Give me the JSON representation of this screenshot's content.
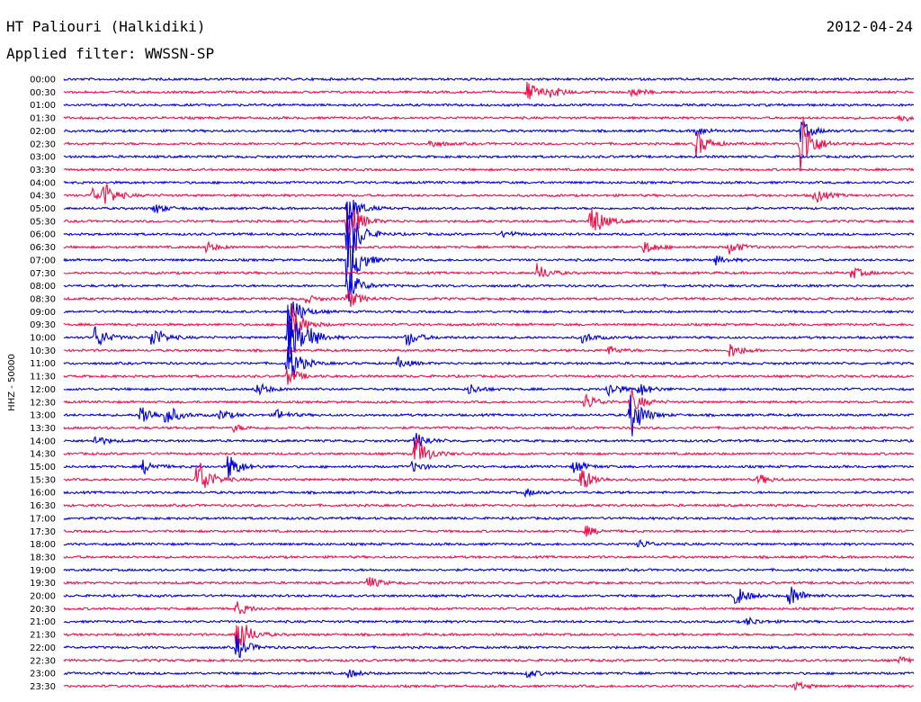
{
  "header": {
    "station": "HT Paliouri (Halkidiki)",
    "date": "2012-04-24",
    "filter": "Applied filter: WWSSN-SP"
  },
  "chart_data": {
    "type": "line",
    "ylabel": "HHZ - 50000",
    "colors": [
      "#0000e0",
      "#f0104a"
    ],
    "x_range_minutes": [
      0,
      30
    ],
    "rows": [
      {
        "label": "00:00",
        "events": []
      },
      {
        "label": "00:30",
        "events": [
          {
            "t": 16.3,
            "a": 14
          },
          {
            "t": 17.2,
            "a": 6
          },
          {
            "t": 20.0,
            "a": 6
          }
        ]
      },
      {
        "label": "01:00",
        "events": []
      },
      {
        "label": "01:30",
        "events": [
          {
            "t": 29.5,
            "a": 5
          }
        ]
      },
      {
        "label": "02:00",
        "events": [
          {
            "t": 22.3,
            "a": 6
          },
          {
            "t": 26.0,
            "a": 12
          }
        ]
      },
      {
        "label": "02:30",
        "events": [
          {
            "t": 12.9,
            "a": 5
          },
          {
            "t": 22.3,
            "a": 16
          },
          {
            "t": 26.0,
            "a": 40
          }
        ]
      },
      {
        "label": "03:00",
        "events": []
      },
      {
        "label": "03:30",
        "events": []
      },
      {
        "label": "04:00",
        "events": []
      },
      {
        "label": "04:30",
        "events": [
          {
            "t": 1.0,
            "a": 8
          },
          {
            "t": 1.4,
            "a": 14
          },
          {
            "t": 26.5,
            "a": 9
          }
        ]
      },
      {
        "label": "05:00",
        "events": [
          {
            "t": 3.2,
            "a": 6
          },
          {
            "t": 10.0,
            "a": 20
          }
        ]
      },
      {
        "label": "05:30",
        "events": [
          {
            "t": 10.0,
            "a": 30
          },
          {
            "t": 18.6,
            "a": 22
          }
        ]
      },
      {
        "label": "06:00",
        "events": [
          {
            "t": 10.0,
            "a": 45
          },
          {
            "t": 15.5,
            "a": 4
          }
        ]
      },
      {
        "label": "06:30",
        "events": [
          {
            "t": 5.0,
            "a": 6
          },
          {
            "t": 20.5,
            "a": 8
          },
          {
            "t": 23.5,
            "a": 8
          }
        ]
      },
      {
        "label": "07:00",
        "events": [
          {
            "t": 10.0,
            "a": 40
          },
          {
            "t": 23.0,
            "a": 5
          }
        ]
      },
      {
        "label": "07:30",
        "events": [
          {
            "t": 16.7,
            "a": 10
          },
          {
            "t": 27.8,
            "a": 7
          }
        ]
      },
      {
        "label": "08:00",
        "events": [
          {
            "t": 10.0,
            "a": 20
          }
        ]
      },
      {
        "label": "08:30",
        "events": [
          {
            "t": 8.5,
            "a": 5
          },
          {
            "t": 10.0,
            "a": 12
          }
        ]
      },
      {
        "label": "09:00",
        "events": [
          {
            "t": 8.0,
            "a": 20
          }
        ]
      },
      {
        "label": "09:30",
        "events": [
          {
            "t": 8.0,
            "a": 26
          }
        ]
      },
      {
        "label": "10:00",
        "events": [
          {
            "t": 1.1,
            "a": 14
          },
          {
            "t": 3.1,
            "a": 14
          },
          {
            "t": 7.9,
            "a": 40
          },
          {
            "t": 8.6,
            "a": 10
          },
          {
            "t": 12.1,
            "a": 10
          },
          {
            "t": 18.3,
            "a": 6
          }
        ]
      },
      {
        "label": "10:30",
        "events": [
          {
            "t": 19.2,
            "a": 5
          },
          {
            "t": 23.5,
            "a": 9
          }
        ]
      },
      {
        "label": "11:00",
        "events": [
          {
            "t": 7.9,
            "a": 26
          },
          {
            "t": 11.8,
            "a": 6
          }
        ]
      },
      {
        "label": "11:30",
        "events": [
          {
            "t": 7.9,
            "a": 10
          }
        ]
      },
      {
        "label": "12:00",
        "events": [
          {
            "t": 6.8,
            "a": 8
          },
          {
            "t": 14.3,
            "a": 6
          },
          {
            "t": 19.2,
            "a": 9
          },
          {
            "t": 20.3,
            "a": 8
          }
        ]
      },
      {
        "label": "12:30",
        "events": [
          {
            "t": 18.4,
            "a": 10
          },
          {
            "t": 20.0,
            "a": 14
          }
        ]
      },
      {
        "label": "13:00",
        "events": [
          {
            "t": 2.7,
            "a": 14
          },
          {
            "t": 3.6,
            "a": 12
          },
          {
            "t": 5.5,
            "a": 6
          },
          {
            "t": 7.5,
            "a": 6
          },
          {
            "t": 20.0,
            "a": 28
          }
        ]
      },
      {
        "label": "13:30",
        "events": [
          {
            "t": 6.0,
            "a": 4
          }
        ]
      },
      {
        "label": "14:00",
        "events": [
          {
            "t": 1.1,
            "a": 6
          },
          {
            "t": 12.4,
            "a": 10
          }
        ]
      },
      {
        "label": "14:30",
        "events": [
          {
            "t": 12.4,
            "a": 22
          }
        ]
      },
      {
        "label": "15:00",
        "events": [
          {
            "t": 2.8,
            "a": 8
          },
          {
            "t": 5.8,
            "a": 16
          },
          {
            "t": 12.3,
            "a": 6
          },
          {
            "t": 18.0,
            "a": 8
          }
        ]
      },
      {
        "label": "15:30",
        "events": [
          {
            "t": 4.7,
            "a": 28
          },
          {
            "t": 18.2,
            "a": 18
          },
          {
            "t": 24.5,
            "a": 6
          }
        ]
      },
      {
        "label": "16:00",
        "events": [
          {
            "t": 16.3,
            "a": 4
          }
        ]
      },
      {
        "label": "16:30",
        "events": []
      },
      {
        "label": "17:00",
        "events": []
      },
      {
        "label": "17:30",
        "events": [
          {
            "t": 18.4,
            "a": 6
          }
        ]
      },
      {
        "label": "18:00",
        "events": [
          {
            "t": 20.3,
            "a": 5
          }
        ]
      },
      {
        "label": "18:30",
        "events": []
      },
      {
        "label": "19:00",
        "events": []
      },
      {
        "label": "19:30",
        "events": [
          {
            "t": 10.7,
            "a": 8
          }
        ]
      },
      {
        "label": "20:00",
        "events": [
          {
            "t": 23.7,
            "a": 12
          },
          {
            "t": 25.6,
            "a": 14
          }
        ]
      },
      {
        "label": "20:30",
        "events": [
          {
            "t": 6.1,
            "a": 8
          }
        ]
      },
      {
        "label": "21:00",
        "events": [
          {
            "t": 24.1,
            "a": 5
          }
        ]
      },
      {
        "label": "21:30",
        "events": [
          {
            "t": 6.1,
            "a": 26
          }
        ]
      },
      {
        "label": "22:00",
        "events": [
          {
            "t": 6.1,
            "a": 14
          }
        ]
      },
      {
        "label": "22:30",
        "events": [
          {
            "t": 29.5,
            "a": 4
          }
        ]
      },
      {
        "label": "23:00",
        "events": [
          {
            "t": 10.0,
            "a": 5
          },
          {
            "t": 16.3,
            "a": 5
          }
        ]
      },
      {
        "label": "23:30",
        "events": [
          {
            "t": 25.8,
            "a": 5
          }
        ]
      }
    ]
  }
}
